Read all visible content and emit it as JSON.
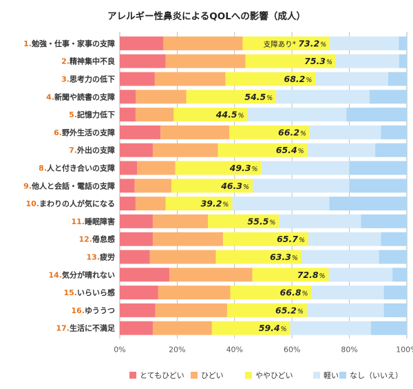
{
  "chart_data": {
    "type": "bar",
    "orientation": "horizontal-stacked-100",
    "title": "アレルギー性鼻炎によるQOLへの影響（成人）",
    "categories": [
      {
        "num": "1.",
        "label": "勉強・仕事・家事の支障"
      },
      {
        "num": "2.",
        "label": "精神集中不良"
      },
      {
        "num": "3.",
        "label": "思考力の低下"
      },
      {
        "num": "4.",
        "label": "新聞や読書の支障"
      },
      {
        "num": "5.",
        "label": "記憶力低下"
      },
      {
        "num": "6.",
        "label": "野外生活の支障"
      },
      {
        "num": "7.",
        "label": "外出の支障"
      },
      {
        "num": "8.",
        "label": "人と付き合いの支障"
      },
      {
        "num": "9.",
        "label": "他人と会話・電話の支障"
      },
      {
        "num": "10.",
        "label": "まわりの人が気になる"
      },
      {
        "num": "11.",
        "label": "睡眠障害"
      },
      {
        "num": "12.",
        "label": "倦怠感"
      },
      {
        "num": "13.",
        "label": "疲労"
      },
      {
        "num": "14.",
        "label": "気分が晴れない"
      },
      {
        "num": "15.",
        "label": "いらいら感"
      },
      {
        "num": "16.",
        "label": "ゆううつ"
      },
      {
        "num": "17.",
        "label": "生活に不満足"
      }
    ],
    "series": [
      {
        "name": "とてもひどい",
        "color": "#f4777f",
        "values": [
          15.2,
          16.0,
          12.2,
          5.6,
          5.5,
          14.2,
          11.5,
          6.0,
          5.2,
          5.5,
          11.5,
          11.5,
          10.5,
          17.3,
          13.4,
          12.4,
          11.5
        ]
      },
      {
        "name": "ひどい",
        "color": "#fcb26f",
        "values": [
          27.6,
          27.8,
          24.6,
          17.6,
          13.3,
          24.0,
          22.7,
          13.3,
          12.8,
          10.5,
          19.2,
          24.5,
          23.0,
          28.9,
          25.1,
          25.0,
          20.6
        ]
      },
      {
        "name": "ややひどい",
        "color": "#f9f74d",
        "values": [
          30.4,
          31.5,
          31.4,
          31.3,
          25.7,
          28.0,
          31.2,
          30.0,
          28.3,
          23.2,
          24.8,
          29.7,
          29.8,
          26.6,
          28.3,
          27.8,
          27.3
        ]
      },
      {
        "name": "軽い",
        "color": "#d3e9fa",
        "values": [
          24.0,
          22.0,
          25.3,
          32.5,
          34.5,
          24.8,
          23.6,
          30.7,
          33.7,
          33.8,
          28.5,
          25.3,
          27.0,
          22.2,
          25.2,
          26.8,
          28.1
        ]
      },
      {
        "name": "なし（いいえ）",
        "color": "#afd6f4",
        "values": [
          2.8,
          2.7,
          6.5,
          13.0,
          21.0,
          9.0,
          11.0,
          20.0,
          20.0,
          27.0,
          16.0,
          9.0,
          9.7,
          5.0,
          8.0,
          8.0,
          12.5
        ]
      }
    ],
    "totals": [
      {
        "prefix": "支障あり*",
        "value": "73.2",
        "unit": "%"
      },
      {
        "prefix": "",
        "value": "75.3",
        "unit": "%"
      },
      {
        "prefix": "",
        "value": "68.2",
        "unit": "%"
      },
      {
        "prefix": "",
        "value": "54.5",
        "unit": "%"
      },
      {
        "prefix": "",
        "value": "44.5",
        "unit": "%"
      },
      {
        "prefix": "",
        "value": "66.2",
        "unit": "%"
      },
      {
        "prefix": "",
        "value": "65.4",
        "unit": "%"
      },
      {
        "prefix": "",
        "value": "49.3",
        "unit": "%"
      },
      {
        "prefix": "",
        "value": "46.3",
        "unit": "%"
      },
      {
        "prefix": "",
        "value": "39.2",
        "unit": "%"
      },
      {
        "prefix": "",
        "value": "55.5",
        "unit": "%"
      },
      {
        "prefix": "",
        "value": "65.7",
        "unit": "%"
      },
      {
        "prefix": "",
        "value": "63.3",
        "unit": "%"
      },
      {
        "prefix": "",
        "value": "72.8",
        "unit": "%"
      },
      {
        "prefix": "",
        "value": "66.8",
        "unit": "%"
      },
      {
        "prefix": "",
        "value": "65.2",
        "unit": "%"
      },
      {
        "prefix": "",
        "value": "59.4",
        "unit": "%"
      }
    ],
    "xticks": [
      "0%",
      "20%",
      "40%",
      "60%",
      "80%",
      "100%"
    ],
    "xlim": [
      0,
      100
    ],
    "grid": true,
    "legend_position": "bottom",
    "colors": {
      "number": "#e6731c",
      "label": "#333333",
      "grid": "#b0b0b0",
      "axis": "#555555"
    }
  }
}
